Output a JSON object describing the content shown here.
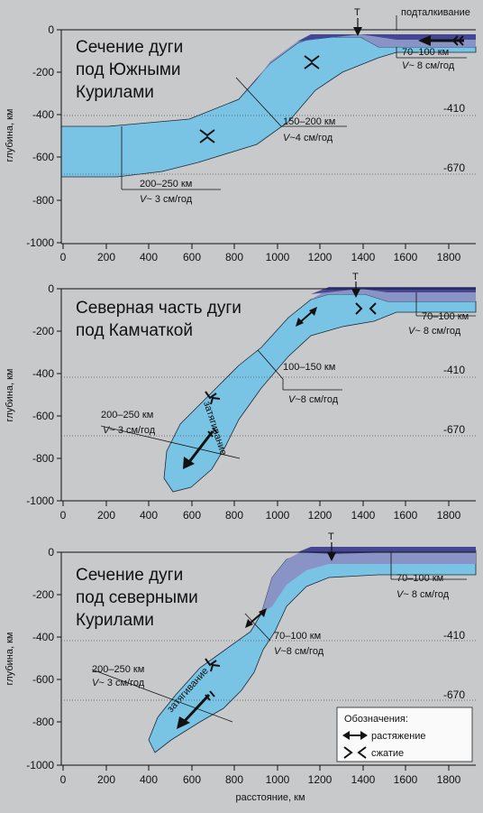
{
  "panels": [
    {
      "title_lines": [
        "Сечение дуги",
        "под Южными",
        "Курилами"
      ],
      "trench_label": "Т",
      "push_label": "подталкивание",
      "annotations": [
        {
          "line1": "70–100 км",
          "v_prefix": "V",
          "v_rest": "~ 8 см/год"
        },
        {
          "line1": "150–200 км",
          "v_prefix": "V",
          "v_rest": "~4 см/год"
        },
        {
          "line1": "200–250 км",
          "v_prefix": "V",
          "v_rest": "~ 3 см/год"
        }
      ]
    },
    {
      "title_lines": [
        "Северная часть дуги",
        "под Камчаткой"
      ],
      "trench_label": "Т",
      "pull_label": "затягивание",
      "annotations": [
        {
          "line1": "70–100 км",
          "v_prefix": "V",
          "v_rest": "~ 8 см/год"
        },
        {
          "line1": "100–150 км",
          "v_prefix": "V",
          "v_rest": "~8 см/год"
        },
        {
          "line1": "200–250 км",
          "v_prefix": "V",
          "v_rest": "~ 3 см/год"
        }
      ]
    },
    {
      "title_lines": [
        "Сечение дуги",
        "под северными",
        "Курилами"
      ],
      "trench_label": "Т",
      "pull_label": "затягивание",
      "annotations": [
        {
          "line1": "70–100 км",
          "v_prefix": "V",
          "v_rest": "~ 8 см/год"
        },
        {
          "line1": "70–100 км",
          "v_prefix": "V",
          "v_rest": "~8 см/год"
        },
        {
          "line1": "200–250 км",
          "v_prefix": "V",
          "v_rest": "~ 3 см/год"
        }
      ]
    }
  ],
  "axes": {
    "ylabel": "глубина, км",
    "xlabel": "расстояние, км",
    "x_ticks": [
      "0",
      "200",
      "400",
      "600",
      "800",
      "1000",
      "1200",
      "1400",
      "1600",
      "1800"
    ],
    "y_ticks": [
      "0",
      "-200",
      "-400",
      "-600",
      "-800",
      "-1000"
    ],
    "x_range": [
      0,
      1920
    ],
    "y_range": [
      -1000,
      0
    ],
    "depth_markers": [
      "-410",
      "-670"
    ]
  },
  "legend": {
    "title": "Обозначения:",
    "extension": "растяжение",
    "compression": "сжатие"
  },
  "colors": {
    "background": "#c8c9cb",
    "slab": "#79c4e4",
    "crust": "#8a93c6",
    "crust_dark": "#3d3f8e",
    "surface_plate": "#a6d7ec"
  }
}
